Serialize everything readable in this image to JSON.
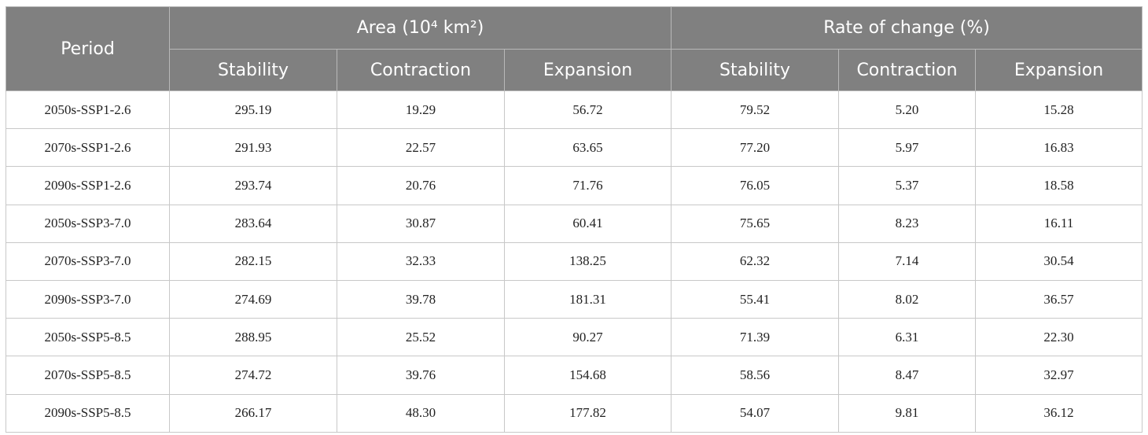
{
  "table": {
    "header": {
      "period": "Period",
      "groups": [
        "Area (10⁴ km²)",
        "Rate of change (%)"
      ],
      "columns": [
        "Stability",
        "Contraction",
        "Expansion",
        "Stability",
        "Contraction",
        "Expansion"
      ]
    },
    "rows": [
      [
        "2050s-SSP1-2.6",
        "295.19",
        "19.29",
        "56.72",
        "79.52",
        "5.20",
        "15.28"
      ],
      [
        "2070s-SSP1-2.6",
        "291.93",
        "22.57",
        "63.65",
        "77.20",
        "5.97",
        "16.83"
      ],
      [
        "2090s-SSP1-2.6",
        "293.74",
        "20.76",
        "71.76",
        "76.05",
        "5.37",
        "18.58"
      ],
      [
        "2050s-SSP3-7.0",
        "283.64",
        "30.87",
        "60.41",
        "75.65",
        "8.23",
        "16.11"
      ],
      [
        "2070s-SSP3-7.0",
        "282.15",
        "32.33",
        "138.25",
        "62.32",
        "7.14",
        "30.54"
      ],
      [
        "2090s-SSP3-7.0",
        "274.69",
        "39.78",
        "181.31",
        "55.41",
        "8.02",
        "36.57"
      ],
      [
        "2050s-SSP5-8.5",
        "288.95",
        "25.52",
        "90.27",
        "71.39",
        "6.31",
        "22.30"
      ],
      [
        "2070s-SSP5-8.5",
        "274.72",
        "39.76",
        "154.68",
        "58.56",
        "8.47",
        "32.97"
      ],
      [
        "2090s-SSP5-8.5",
        "266.17",
        "48.30",
        "177.82",
        "54.07",
        "9.81",
        "36.12"
      ]
    ]
  }
}
